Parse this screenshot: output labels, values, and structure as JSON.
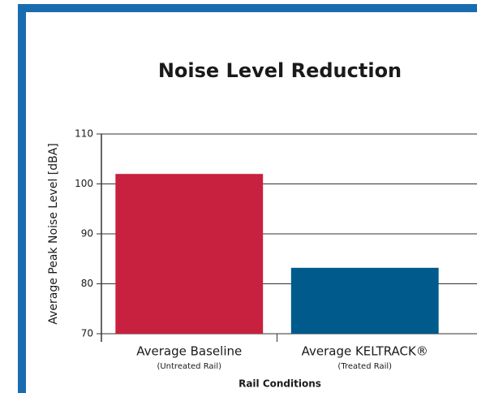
{
  "chart_data": {
    "type": "bar",
    "title": "Noise Level Reduction",
    "y_label": "Average Peak Noise Level [dBA]",
    "x_label": "Rail Conditions",
    "categories": [
      "Average Baseline",
      "Average KELTRACK®"
    ],
    "category_notes": [
      "(Untreated Rail)",
      "(Treated Rail)"
    ],
    "values": [
      102,
      83.2
    ],
    "colors": [
      "#c8203f",
      "#005a8c"
    ],
    "ylim": [
      70,
      110
    ],
    "yticks": [
      70,
      80,
      90,
      100,
      110
    ],
    "grid": true
  }
}
